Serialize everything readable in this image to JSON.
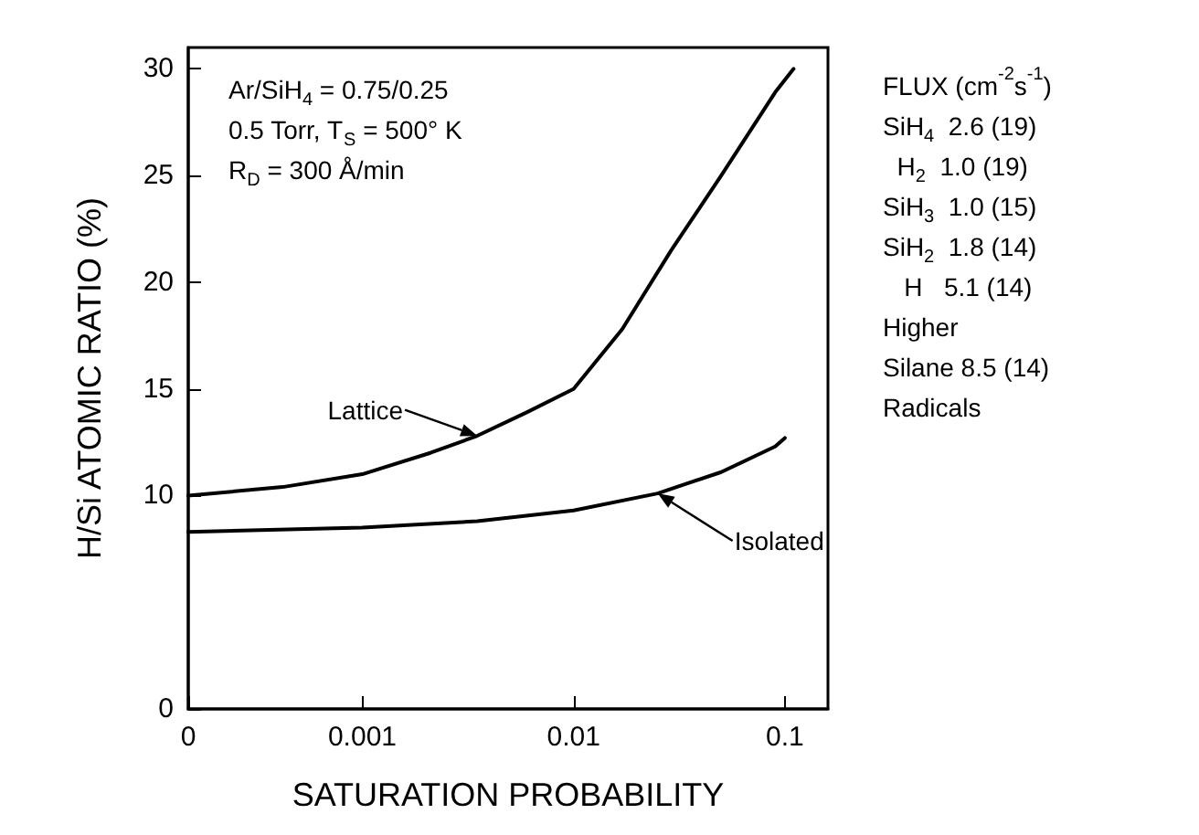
{
  "chart_data": {
    "type": "line",
    "xlabel": "SATURATION PROBABILITY",
    "ylabel": "H/Si ATOMIC RATIO (%)",
    "log": "x",
    "xlim": [
      0.00015,
      0.16
    ],
    "xticks": [
      {
        "value": 0.00015,
        "label": "0"
      },
      0.001,
      0.01,
      0.1
    ],
    "ylim": [
      0,
      31
    ],
    "yticks": [
      0,
      10,
      15,
      20,
      25,
      30
    ],
    "grid": false,
    "series": [
      {
        "color": "#000000",
        "x": [
          0.00015,
          0.00042,
          0.001,
          0.0021,
          0.0035,
          0.006,
          0.01,
          0.017,
          0.029,
          0.05,
          0.09,
          0.11
        ],
        "values": [
          10.0,
          10.4,
          11.0,
          12.0,
          12.8,
          13.9,
          15.0,
          17.8,
          21.5,
          25.0,
          28.9,
          30.0
        ]
      },
      {
        "color": "#000000",
        "x": [
          0.00015,
          0.001,
          0.0035,
          0.01,
          0.025,
          0.05,
          0.09,
          0.1
        ],
        "values": [
          8.3,
          8.5,
          8.8,
          9.3,
          10.1,
          11.1,
          12.3,
          12.7
        ]
      }
    ],
    "annotations": [
      "Ar/SiH$_{4}$ = 0.75/0.25\n0.5 Torr, T$_{S}$ = 500° K\nR$_{D}$ = 300 Å/min",
      "FLUX (cm$^{-2}$s$^{-1}$)\nSiH$_{4}$  2.6 (19)\n  H$_{2}$  1.0 (19)\nSiH$_{3}$  1.0 (15)\nSiH$_{2}$  1.8 (14)\n   H   5.1 (14)\nHigher\nSilane 8.5 (14)\nRadicals",
      {
        "text": "Lattice",
        "x": 0.0035,
        "y": 12.8
      },
      {
        "text": "Isolated",
        "x": 0.025,
        "y": 10.1
      }
    ]
  }
}
